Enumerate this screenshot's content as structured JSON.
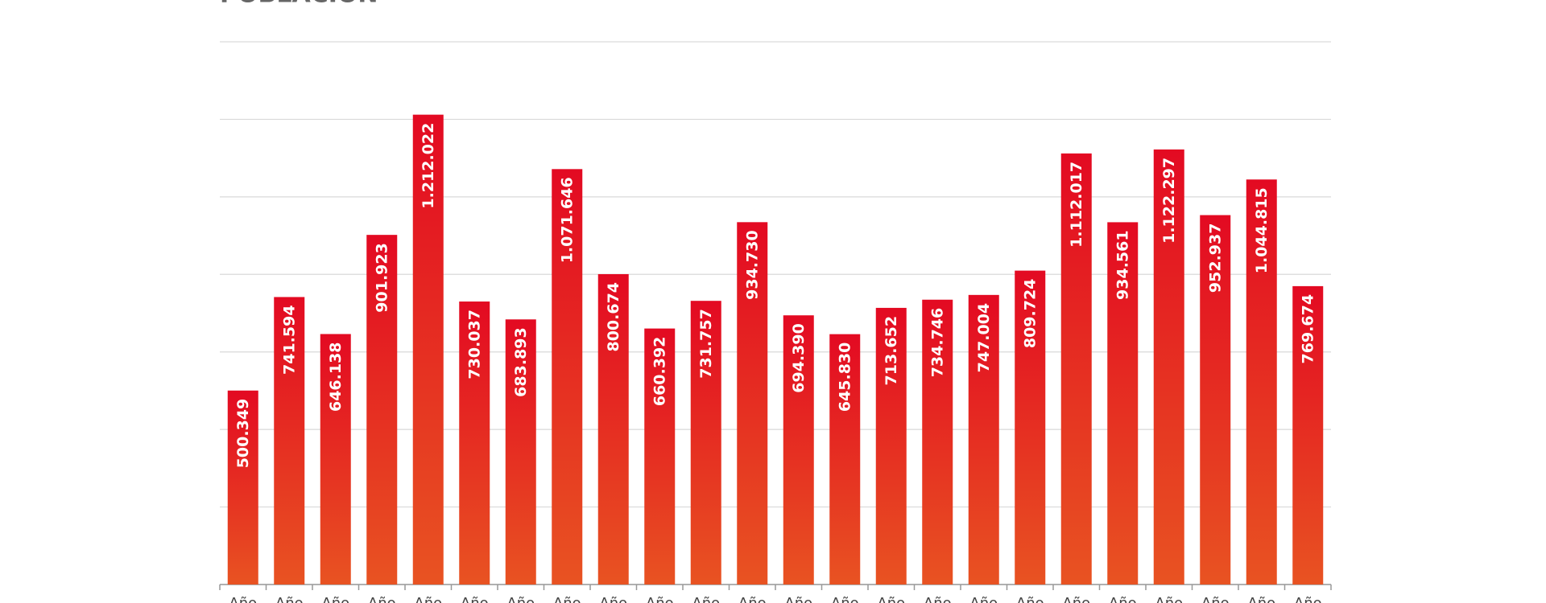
{
  "chart_data": {
    "type": "bar",
    "title": "POBLACIÓN",
    "categories": [
      "Año",
      "Año",
      "Año",
      "Año",
      "Año",
      "Año",
      "Año",
      "Año",
      "Año",
      "Año",
      "Año",
      "Año",
      "Año",
      "Año",
      "Año",
      "Año",
      "Año",
      "Año",
      "Año",
      "Año",
      "Año",
      "Año",
      "Año",
      "Año"
    ],
    "values": [
      500349,
      741594,
      646138,
      901923,
      1212022,
      730037,
      683893,
      1071646,
      800674,
      660392,
      731757,
      934730,
      694390,
      645830,
      713652,
      734746,
      747004,
      809724,
      1112017,
      934561,
      1122297,
      952937,
      1044815,
      769674
    ],
    "value_labels": [
      "500.349",
      "741.594",
      "646.138",
      "901.923",
      "1.212.022",
      "730.037",
      "683.893",
      "1.071.646",
      "800.674",
      "660.392",
      "731.757",
      "934.730",
      "694.390",
      "645.830",
      "713.652",
      "734.746",
      "747.004",
      "809.724",
      "1.112.017",
      "934.561",
      "1.122.297",
      "952.937",
      "1.044.815",
      "769.674"
    ],
    "color": [
      "#e30a22",
      "#e85322"
    ],
    "ylim": [
      0,
      1400000
    ],
    "yticks": [
      0,
      200000,
      400000,
      600000,
      800000,
      1000000,
      1200000,
      1400000
    ],
    "grid": true
  }
}
